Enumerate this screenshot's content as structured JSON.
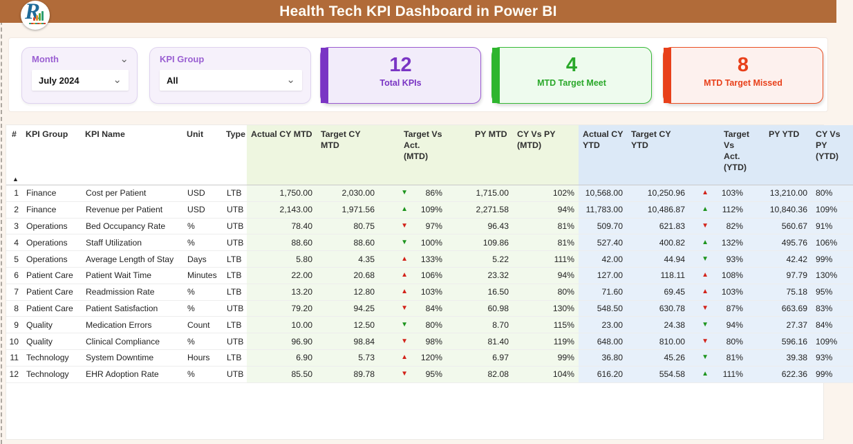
{
  "header": {
    "title": "Health Tech KPI Dashboard in Power BI",
    "logo_letter": "R"
  },
  "icons": {
    "chevron_down": "⌄",
    "sort_asc": "▲",
    "up": "▲",
    "down": "▼"
  },
  "colors": {
    "topbar": "#b16b39",
    "purple": "#7a35c4",
    "green": "#2aa82a",
    "red": "#e8401a"
  },
  "filters": {
    "month": {
      "label": "Month",
      "value": "July 2024"
    },
    "kpi_group": {
      "label": "KPI Group",
      "value": "All"
    }
  },
  "cards": {
    "total": {
      "value": "12",
      "label": "Total KPIs"
    },
    "meet": {
      "value": "4",
      "label": "MTD Target Meet"
    },
    "missed": {
      "value": "8",
      "label": "MTD Target Missed"
    }
  },
  "table": {
    "columns": [
      "#",
      "KPI Group",
      "KPI Name",
      "Unit",
      "Type",
      "Actual CY MTD",
      "Target CY MTD",
      "Target Vs Act. (MTD)",
      "PY MTD",
      "CY Vs PY (MTD)",
      "Actual CY YTD",
      "Target CY YTD",
      "Target Vs Act. (YTD)",
      "PY YTD",
      "CY Vs PY (YTD)"
    ],
    "rows": [
      {
        "num": "1",
        "group": "Finance",
        "name": "Cost per Patient",
        "unit": "USD",
        "type": "LTB",
        "actual_mtd": "1,750.00",
        "target_mtd": "2,030.00",
        "tva_mtd": {
          "dir": "down",
          "tone": "good",
          "pct": "86%"
        },
        "py_mtd": "1,715.00",
        "cy_py_mtd": "102%",
        "actual_ytd": "10,568.00",
        "target_ytd": "10,250.96",
        "tva_ytd": {
          "dir": "up",
          "tone": "bad",
          "pct": "103%"
        },
        "py_ytd": "13,210.00",
        "cy_py_ytd": "80%"
      },
      {
        "num": "2",
        "group": "Finance",
        "name": "Revenue per Patient",
        "unit": "USD",
        "type": "UTB",
        "actual_mtd": "2,143.00",
        "target_mtd": "1,971.56",
        "tva_mtd": {
          "dir": "up",
          "tone": "good",
          "pct": "109%"
        },
        "py_mtd": "2,271.58",
        "cy_py_mtd": "94%",
        "actual_ytd": "11,783.00",
        "target_ytd": "10,486.87",
        "tva_ytd": {
          "dir": "up",
          "tone": "good",
          "pct": "112%"
        },
        "py_ytd": "10,840.36",
        "cy_py_ytd": "109%"
      },
      {
        "num": "3",
        "group": "Operations",
        "name": "Bed Occupancy Rate",
        "unit": "%",
        "type": "UTB",
        "actual_mtd": "78.40",
        "target_mtd": "80.75",
        "tva_mtd": {
          "dir": "down",
          "tone": "bad",
          "pct": "97%"
        },
        "py_mtd": "96.43",
        "cy_py_mtd": "81%",
        "actual_ytd": "509.70",
        "target_ytd": "621.83",
        "tva_ytd": {
          "dir": "down",
          "tone": "bad",
          "pct": "82%"
        },
        "py_ytd": "560.67",
        "cy_py_ytd": "91%"
      },
      {
        "num": "4",
        "group": "Operations",
        "name": "Staff Utilization",
        "unit": "%",
        "type": "UTB",
        "actual_mtd": "88.60",
        "target_mtd": "88.60",
        "tva_mtd": {
          "dir": "down",
          "tone": "good",
          "pct": "100%"
        },
        "py_mtd": "109.86",
        "cy_py_mtd": "81%",
        "actual_ytd": "527.40",
        "target_ytd": "400.82",
        "tva_ytd": {
          "dir": "up",
          "tone": "good",
          "pct": "132%"
        },
        "py_ytd": "495.76",
        "cy_py_ytd": "106%"
      },
      {
        "num": "5",
        "group": "Operations",
        "name": "Average Length of Stay",
        "unit": "Days",
        "type": "LTB",
        "actual_mtd": "5.80",
        "target_mtd": "4.35",
        "tva_mtd": {
          "dir": "up",
          "tone": "bad",
          "pct": "133%"
        },
        "py_mtd": "5.22",
        "cy_py_mtd": "111%",
        "actual_ytd": "42.00",
        "target_ytd": "44.94",
        "tva_ytd": {
          "dir": "down",
          "tone": "good",
          "pct": "93%"
        },
        "py_ytd": "42.42",
        "cy_py_ytd": "99%"
      },
      {
        "num": "6",
        "group": "Patient Care",
        "name": "Patient Wait Time",
        "unit": "Minutes",
        "type": "LTB",
        "actual_mtd": "22.00",
        "target_mtd": "20.68",
        "tva_mtd": {
          "dir": "up",
          "tone": "bad",
          "pct": "106%"
        },
        "py_mtd": "23.32",
        "cy_py_mtd": "94%",
        "actual_ytd": "127.00",
        "target_ytd": "118.11",
        "tva_ytd": {
          "dir": "up",
          "tone": "bad",
          "pct": "108%"
        },
        "py_ytd": "97.79",
        "cy_py_ytd": "130%"
      },
      {
        "num": "7",
        "group": "Patient Care",
        "name": "Readmission Rate",
        "unit": "%",
        "type": "LTB",
        "actual_mtd": "13.20",
        "target_mtd": "12.80",
        "tva_mtd": {
          "dir": "up",
          "tone": "bad",
          "pct": "103%"
        },
        "py_mtd": "16.50",
        "cy_py_mtd": "80%",
        "actual_ytd": "71.60",
        "target_ytd": "69.45",
        "tva_ytd": {
          "dir": "up",
          "tone": "bad",
          "pct": "103%"
        },
        "py_ytd": "75.18",
        "cy_py_ytd": "95%"
      },
      {
        "num": "8",
        "group": "Patient Care",
        "name": "Patient Satisfaction",
        "unit": "%",
        "type": "UTB",
        "actual_mtd": "79.20",
        "target_mtd": "94.25",
        "tva_mtd": {
          "dir": "down",
          "tone": "bad",
          "pct": "84%"
        },
        "py_mtd": "60.98",
        "cy_py_mtd": "130%",
        "actual_ytd": "548.50",
        "target_ytd": "630.78",
        "tva_ytd": {
          "dir": "down",
          "tone": "bad",
          "pct": "87%"
        },
        "py_ytd": "663.69",
        "cy_py_ytd": "83%"
      },
      {
        "num": "9",
        "group": "Quality",
        "name": "Medication Errors",
        "unit": "Count",
        "type": "LTB",
        "actual_mtd": "10.00",
        "target_mtd": "12.50",
        "tva_mtd": {
          "dir": "down",
          "tone": "good",
          "pct": "80%"
        },
        "py_mtd": "8.70",
        "cy_py_mtd": "115%",
        "actual_ytd": "23.00",
        "target_ytd": "24.38",
        "tva_ytd": {
          "dir": "down",
          "tone": "good",
          "pct": "94%"
        },
        "py_ytd": "27.37",
        "cy_py_ytd": "84%"
      },
      {
        "num": "10",
        "group": "Quality",
        "name": "Clinical Compliance",
        "unit": "%",
        "type": "UTB",
        "actual_mtd": "96.90",
        "target_mtd": "98.84",
        "tva_mtd": {
          "dir": "down",
          "tone": "bad",
          "pct": "98%"
        },
        "py_mtd": "81.40",
        "cy_py_mtd": "119%",
        "actual_ytd": "648.00",
        "target_ytd": "810.00",
        "tva_ytd": {
          "dir": "down",
          "tone": "bad",
          "pct": "80%"
        },
        "py_ytd": "596.16",
        "cy_py_ytd": "109%"
      },
      {
        "num": "11",
        "group": "Technology",
        "name": "System Downtime",
        "unit": "Hours",
        "type": "LTB",
        "actual_mtd": "6.90",
        "target_mtd": "5.73",
        "tva_mtd": {
          "dir": "up",
          "tone": "bad",
          "pct": "120%"
        },
        "py_mtd": "6.97",
        "cy_py_mtd": "99%",
        "actual_ytd": "36.80",
        "target_ytd": "45.26",
        "tva_ytd": {
          "dir": "down",
          "tone": "good",
          "pct": "81%"
        },
        "py_ytd": "39.38",
        "cy_py_ytd": "93%"
      },
      {
        "num": "12",
        "group": "Technology",
        "name": "EHR Adoption Rate",
        "unit": "%",
        "type": "UTB",
        "actual_mtd": "85.50",
        "target_mtd": "89.78",
        "tva_mtd": {
          "dir": "down",
          "tone": "bad",
          "pct": "95%"
        },
        "py_mtd": "82.08",
        "cy_py_mtd": "104%",
        "actual_ytd": "616.20",
        "target_ytd": "554.58",
        "tva_ytd": {
          "dir": "up",
          "tone": "good",
          "pct": "111%"
        },
        "py_ytd": "622.36",
        "cy_py_ytd": "99%"
      }
    ]
  }
}
